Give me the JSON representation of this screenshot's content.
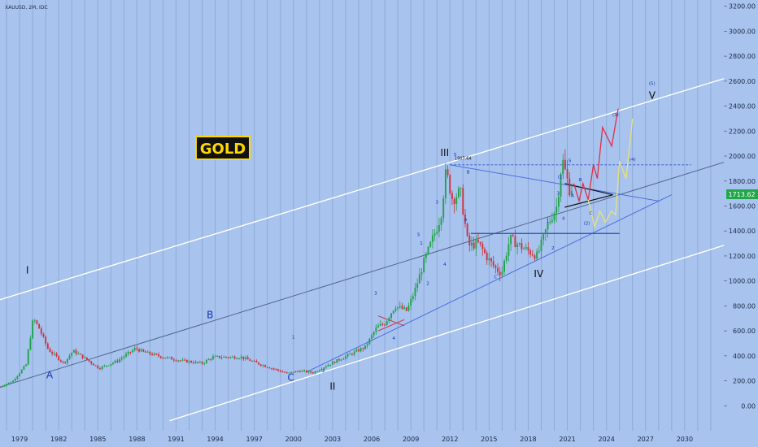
{
  "header": {
    "symbol_title": "XAUUSD, 2M, IDC"
  },
  "badge": {
    "text": "GOLD"
  },
  "price_tag": {
    "value": "1713.62"
  },
  "colors": {
    "background": "#a7c3ee",
    "up": "#21a04a",
    "down": "#d0303a",
    "channel": "#ffffff",
    "midline": "#4b5d86",
    "forecast_red": "#e0304a",
    "forecast_yellow": "#e9e27a",
    "badge_bg": "#111111",
    "badge_fg": "#ffd800",
    "price_tag_bg": "#22a64a",
    "label_blue": "#1733b8",
    "label_black": "#101010"
  },
  "chart_data": {
    "type": "candlestick",
    "title": "XAUUSD, 2M, IDC",
    "x_tick_labels": [
      "1979",
      "1982",
      "1985",
      "1988",
      "1991",
      "1994",
      "1997",
      "2000",
      "2003",
      "2006",
      "2009",
      "2012",
      "2015",
      "2018",
      "2021",
      "2024",
      "2027",
      "2030"
    ],
    "y_tick_labels": [
      "0.00",
      "200.00",
      "400.00",
      "600.00",
      "800.00",
      "1000.00",
      "1200.00",
      "1400.00",
      "1600.00",
      "1800.00",
      "2000.00",
      "2200.00",
      "2400.00",
      "2600.00",
      "2800.00",
      "3000.00",
      "3200.00"
    ],
    "xlim": [
      1977.5,
      2033
    ],
    "ylim": [
      -200,
      3250
    ],
    "grid": "vertical",
    "price_path": [
      [
        1977.5,
        150
      ],
      [
        1978.5,
        200
      ],
      [
        1979.5,
        330
      ],
      [
        1980.05,
        700
      ],
      [
        1980.5,
        620
      ],
      [
        1981.2,
        450
      ],
      [
        1982.4,
        340
      ],
      [
        1983.1,
        440
      ],
      [
        1984.0,
        380
      ],
      [
        1985.1,
        300
      ],
      [
        1986.5,
        360
      ],
      [
        1987.9,
        460
      ],
      [
        1988.5,
        430
      ],
      [
        1990.0,
        390
      ],
      [
        1991.5,
        360
      ],
      [
        1993.0,
        340
      ],
      [
        1993.8,
        390
      ],
      [
        1996.0,
        390
      ],
      [
        1997.5,
        330
      ],
      [
        1999.5,
        260
      ],
      [
        2000.5,
        280
      ],
      [
        2001.5,
        265
      ],
      [
        2002.5,
        320
      ],
      [
        2003.5,
        370
      ],
      [
        2004.5,
        420
      ],
      [
        2005.5,
        470
      ],
      [
        2006.4,
        630
      ],
      [
        2007.0,
        660
      ],
      [
        2007.8,
        800
      ],
      [
        2008.7,
        760
      ],
      [
        2009.3,
        920
      ],
      [
        2010.0,
        1150
      ],
      [
        2010.9,
        1400
      ],
      [
        2011.3,
        1520
      ],
      [
        2011.7,
        1880
      ],
      [
        2012.2,
        1650
      ],
      [
        2012.8,
        1720
      ],
      [
        2013.4,
        1280
      ],
      [
        2014.2,
        1300
      ],
      [
        2014.9,
        1180
      ],
      [
        2015.5,
        1100
      ],
      [
        2015.95,
        1060
      ],
      [
        2016.6,
        1340
      ],
      [
        2017.5,
        1270
      ],
      [
        2018.7,
        1200
      ],
      [
        2019.5,
        1450
      ],
      [
        2020.2,
        1600
      ],
      [
        2020.6,
        1980
      ],
      [
        2021.2,
        1720
      ],
      [
        2021.5,
        1780
      ]
    ],
    "annotations": [
      {
        "text": "I",
        "x": 1979.6,
        "y": 1060,
        "color": "black"
      },
      {
        "text": "A",
        "x": 1981.3,
        "y": 220,
        "color": "blue"
      },
      {
        "text": "B",
        "x": 1993.6,
        "y": 700,
        "color": "blue"
      },
      {
        "text": "C",
        "x": 1999.8,
        "y": 200,
        "color": "blue"
      },
      {
        "text": "1",
        "x": 2000.0,
        "y": 540,
        "color": "blue"
      },
      {
        "text": "2",
        "x": 2002.3,
        "y": 270,
        "color": "blue"
      },
      {
        "text": "II",
        "x": 2003.0,
        "y": 130,
        "color": "black"
      },
      {
        "text": "3",
        "x": 2006.3,
        "y": 890,
        "color": "blue"
      },
      {
        "text": "4",
        "x": 2007.7,
        "y": 530,
        "color": "blue"
      },
      {
        "text": "5",
        "x": 2009.6,
        "y": 1360,
        "color": "blue"
      },
      {
        "text": "1",
        "x": 2009.8,
        "y": 1290,
        "color": "blue"
      },
      {
        "text": "2",
        "x": 2010.3,
        "y": 970,
        "color": "blue"
      },
      {
        "text": "3",
        "x": 2011.0,
        "y": 1620,
        "color": "blue"
      },
      {
        "text": "4",
        "x": 2011.6,
        "y": 1120,
        "color": "blue"
      },
      {
        "text": "III",
        "x": 2011.6,
        "y": 2000,
        "color": "black"
      },
      {
        "text": "5",
        "x": 2012.4,
        "y": 2000,
        "color": "blue"
      },
      {
        "text": "1907.64",
        "x": 2013.0,
        "y": 1970,
        "color": "black"
      },
      {
        "text": "A",
        "x": 2013.2,
        "y": 1480,
        "color": "blue"
      },
      {
        "text": "B",
        "x": 2013.4,
        "y": 1860,
        "color": "blue"
      },
      {
        "text": "C",
        "x": 2015.5,
        "y": 1020,
        "color": "blue"
      },
      {
        "text": "IV",
        "x": 2018.8,
        "y": 1030,
        "color": "black"
      },
      {
        "text": "1",
        "x": 2019.5,
        "y": 1470,
        "color": "blue"
      },
      {
        "text": "2",
        "x": 2019.9,
        "y": 1250,
        "color": "blue"
      },
      {
        "text": "3",
        "x": 2020.3,
        "y": 1690,
        "color": "blue"
      },
      {
        "text": "4",
        "x": 2020.7,
        "y": 1490,
        "color": "blue"
      },
      {
        "text": "5",
        "x": 2021.2,
        "y": 1950,
        "color": "blue"
      },
      {
        "text": "(1)",
        "x": 2020.5,
        "y": 1820,
        "color": "blue"
      },
      {
        "text": "A",
        "x": 2021.4,
        "y": 1670,
        "color": "blue"
      },
      {
        "text": "B",
        "x": 2022.0,
        "y": 1800,
        "color": "blue"
      },
      {
        "text": "C",
        "x": 2022.8,
        "y": 1530,
        "color": "blue"
      },
      {
        "text": "(2)",
        "x": 2022.5,
        "y": 1450,
        "color": "blue"
      },
      {
        "text": "(3)",
        "x": 2024.7,
        "y": 2320,
        "color": "blue"
      },
      {
        "text": "(4)",
        "x": 2026.0,
        "y": 1960,
        "color": "blue"
      },
      {
        "text": "(5)",
        "x": 2027.5,
        "y": 2570,
        "color": "blue"
      },
      {
        "text": "V",
        "x": 2027.5,
        "y": 2460,
        "color": "black"
      }
    ]
  }
}
